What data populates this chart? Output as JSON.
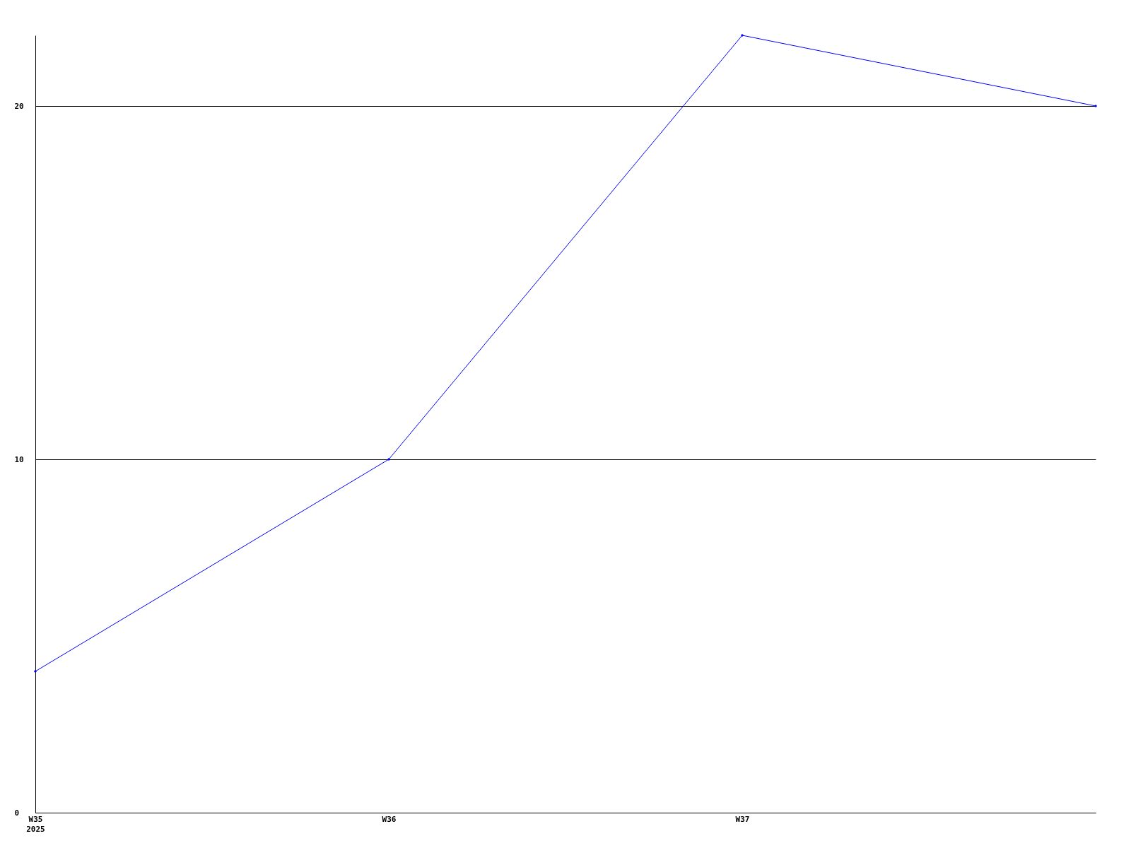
{
  "chart_data": {
    "type": "line",
    "categories": [
      "W35\n2025",
      "W36",
      "W37",
      null
    ],
    "series": [
      {
        "color": "#0000ff",
        "values": [
          4,
          10,
          22,
          20
        ]
      }
    ],
    "ylim": [
      0,
      22
    ],
    "yticks": [
      0,
      10,
      20
    ],
    "grid": "y",
    "marker": "diamond"
  }
}
